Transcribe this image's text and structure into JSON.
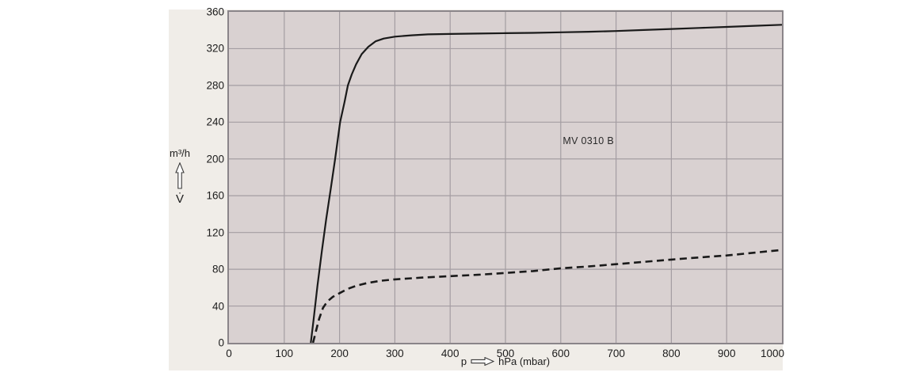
{
  "colors": {
    "panel_bg": "#f0ede8",
    "plot_bg": "#d9d1d1",
    "grid": "#a49da2",
    "plot_border": "#8a8589",
    "curve": "#1a1a1a",
    "text": "#1c1c1c"
  },
  "y_axis": {
    "unit": "m³/h",
    "symbol": "V̇"
  },
  "x_axis": {
    "symbol": "p",
    "unit": "hPa (mbar)"
  },
  "chart_data": {
    "type": "line",
    "title": "",
    "annotation": {
      "text": "MV 0310 B",
      "x": 650,
      "y": 220
    },
    "xlabel": "p → hPa (mbar)",
    "ylabel": "V̇ m³/h",
    "xlim": [
      0,
      1000
    ],
    "ylim": [
      0,
      360
    ],
    "xticks": [
      0,
      100,
      200,
      300,
      400,
      500,
      600,
      700,
      800,
      900,
      1000
    ],
    "yticks": [
      0,
      40,
      80,
      120,
      160,
      200,
      240,
      280,
      320,
      360
    ],
    "grid": true,
    "legend_position": "none",
    "series": [
      {
        "name": "volume-flow-solid",
        "style": "solid",
        "points": [
          [
            148,
            0
          ],
          [
            153,
            25
          ],
          [
            160,
            62
          ],
          [
            168,
            100
          ],
          [
            176,
            135
          ],
          [
            184,
            167
          ],
          [
            192,
            200
          ],
          [
            201,
            240
          ],
          [
            209,
            262
          ],
          [
            215,
            280
          ],
          [
            222,
            292
          ],
          [
            230,
            303
          ],
          [
            240,
            314
          ],
          [
            252,
            322
          ],
          [
            265,
            328
          ],
          [
            280,
            331
          ],
          [
            300,
            333
          ],
          [
            330,
            334.5
          ],
          [
            360,
            335.5
          ],
          [
            400,
            336
          ],
          [
            450,
            336.4
          ],
          [
            500,
            336.8
          ],
          [
            550,
            337.2
          ],
          [
            600,
            337.8
          ],
          [
            650,
            338.4
          ],
          [
            700,
            339.2
          ],
          [
            750,
            340.3
          ],
          [
            800,
            341.4
          ],
          [
            850,
            342.5
          ],
          [
            900,
            343.6
          ],
          [
            950,
            344.8
          ],
          [
            1000,
            346
          ]
        ]
      },
      {
        "name": "volume-flow-dashed",
        "style": "dashed",
        "points": [
          [
            152,
            0
          ],
          [
            157,
            12
          ],
          [
            163,
            26
          ],
          [
            170,
            38
          ],
          [
            178,
            45
          ],
          [
            188,
            50
          ],
          [
            200,
            54
          ],
          [
            214,
            58.5
          ],
          [
            230,
            62
          ],
          [
            250,
            65
          ],
          [
            275,
            67.5
          ],
          [
            300,
            69
          ],
          [
            350,
            71
          ],
          [
            400,
            72.5
          ],
          [
            450,
            74
          ],
          [
            500,
            76
          ],
          [
            550,
            78
          ],
          [
            600,
            81
          ],
          [
            650,
            83
          ],
          [
            700,
            85.5
          ],
          [
            750,
            88
          ],
          [
            800,
            90.5
          ],
          [
            850,
            92.8
          ],
          [
            900,
            95
          ],
          [
            950,
            98
          ],
          [
            1000,
            101
          ]
        ]
      }
    ]
  }
}
